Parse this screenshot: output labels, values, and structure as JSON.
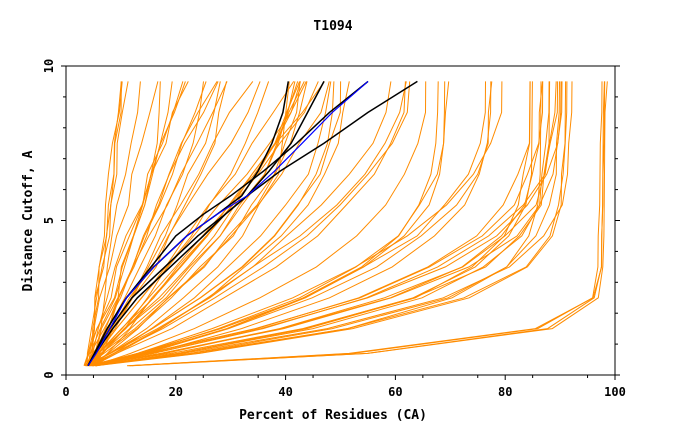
{
  "chart_data": {
    "type": "line",
    "title": "T1094",
    "xlabel": "Percent of Residues (CA)",
    "ylabel": "Distance Cutoff, A",
    "xlim": [
      0,
      100
    ],
    "ylim": [
      0,
      10
    ],
    "x_ticks": [
      0,
      20,
      40,
      60,
      80,
      100
    ],
    "y_ticks": [
      0,
      5,
      10
    ],
    "grid": false,
    "colors": {
      "background_series": "#ff8c00",
      "highlight_black": "#000000",
      "highlight_blue": "#0000ff"
    },
    "y_levels": [
      0.3,
      0.7,
      1.5,
      2.5,
      3.5,
      4.5,
      5.5,
      6.5,
      7.5,
      8.5,
      9.5
    ],
    "background_fans": [
      {
        "count": 4,
        "start": [
          3.3,
          4.5
        ],
        "end": [
          8.5,
          14
        ],
        "k": [
          1.0,
          1.2
        ]
      },
      {
        "count": 26,
        "start": [
          3.0,
          5.5
        ],
        "end": [
          12,
          48
        ],
        "k": [
          0.9,
          1.6
        ]
      },
      {
        "count": 12,
        "start": [
          3.0,
          5.0
        ],
        "end": [
          40,
          66
        ],
        "k": [
          1.5,
          2.4
        ]
      },
      {
        "count": 8,
        "start": [
          3.5,
          5.5
        ],
        "end": [
          64,
          82
        ],
        "k": [
          2.3,
          3.5
        ]
      },
      {
        "count": 16,
        "start": [
          3.5,
          5.5
        ],
        "end": [
          84,
          92.5
        ],
        "k": [
          3.2,
          6.0
        ]
      },
      {
        "count": 4,
        "start": [
          11,
          12
        ],
        "end": [
          96,
          98.5
        ],
        "k": [
          12,
          16
        ]
      }
    ],
    "series": [
      {
        "color": "#0000ff",
        "x": [
          4.0,
          5.5,
          8,
          11,
          16,
          22,
          27.5,
          33,
          38,
          43,
          48.5,
          55
        ],
        "y": [
          0.3,
          0.7,
          1.5,
          2.5,
          3.5,
          4.5,
          5.2,
          5.8,
          6.6,
          7.5,
          8.5,
          9.5
        ]
      },
      {
        "color": "#000000",
        "x": [
          4.0,
          5.2,
          7.5,
          11,
          16,
          22,
          27.5,
          32,
          35,
          37.5,
          39.5,
          40.5
        ],
        "y": [
          0.3,
          0.7,
          1.5,
          2.5,
          3.5,
          4.5,
          5.2,
          5.8,
          6.6,
          7.5,
          8.5,
          9.5
        ]
      },
      {
        "color": "#000000",
        "x": [
          4.0,
          5.3,
          8,
          12,
          18,
          24,
          29,
          33,
          37,
          41,
          44,
          47
        ],
        "y": [
          0.3,
          0.7,
          1.5,
          2.5,
          3.5,
          4.5,
          5.2,
          5.8,
          6.6,
          7.5,
          8.5,
          9.5
        ]
      },
      {
        "color": "#000000",
        "x": [
          4.0,
          5.4,
          8.5,
          13,
          19,
          25,
          29,
          33,
          39,
          47,
          55,
          64
        ],
        "y": [
          0.3,
          0.7,
          1.5,
          2.5,
          3.5,
          4.5,
          5.2,
          5.8,
          6.6,
          7.5,
          8.5,
          9.5
        ]
      },
      {
        "color": "#000000",
        "x": [
          4.0,
          5.2,
          7.5,
          11,
          15.5,
          20,
          25,
          30,
          36,
          42,
          48,
          55
        ],
        "y": [
          0.3,
          0.7,
          1.5,
          2.5,
          3.5,
          4.5,
          5.2,
          5.8,
          6.6,
          7.5,
          8.5,
          9.5
        ]
      }
    ]
  }
}
